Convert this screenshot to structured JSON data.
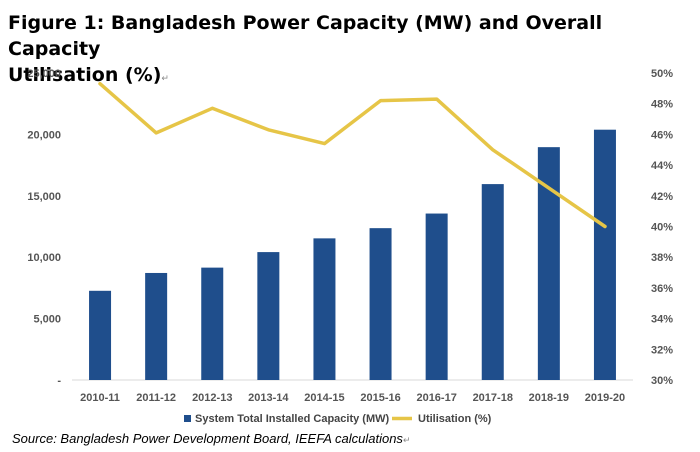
{
  "figure": {
    "title_line1": "Figure 1: Bangladesh Power Capacity (MW) and Overall Capacity",
    "title_line2": "Utilisation (%)",
    "paragraph_mark": "↵",
    "source": "Source: Bangladesh Power Development Board, IEEFA calculations"
  },
  "chart_data": {
    "type": "bar",
    "categories": [
      "2010-11",
      "2011-12",
      "2012-13",
      "2013-14",
      "2014-15",
      "2015-16",
      "2016-17",
      "2017-18",
      "2018-19",
      "2019-20"
    ],
    "series": [
      {
        "name": "System Total Installed Capacity (MW)",
        "type": "bar",
        "axis": "left",
        "color": "#1f4e8c",
        "values": [
          7264,
          8716,
          9151,
          10416,
          11534,
          12365,
          13555,
          15953,
          18961,
          20383
        ]
      },
      {
        "name": "Utilisation (%)",
        "type": "line",
        "axis": "right",
        "color": "#e6c547",
        "values": [
          49.3,
          46.1,
          47.7,
          46.3,
          45.4,
          48.2,
          48.3,
          45.0,
          42.5,
          40.0
        ]
      }
    ],
    "y_left": {
      "min": 0,
      "max": 25000,
      "ticks": [
        {
          "value": 0,
          "label": "-"
        },
        {
          "value": 5000,
          "label": "5,000"
        },
        {
          "value": 10000,
          "label": "10,000"
        },
        {
          "value": 15000,
          "label": "15,000"
        },
        {
          "value": 20000,
          "label": "20,000"
        },
        {
          "value": 25000,
          "label": "25,000"
        }
      ]
    },
    "y_right": {
      "min": 30,
      "max": 50,
      "ticks": [
        {
          "value": 30,
          "label": "30%"
        },
        {
          "value": 32,
          "label": "32%"
        },
        {
          "value": 34,
          "label": "34%"
        },
        {
          "value": 36,
          "label": "36%"
        },
        {
          "value": 38,
          "label": "38%"
        },
        {
          "value": 40,
          "label": "40%"
        },
        {
          "value": 42,
          "label": "42%"
        },
        {
          "value": 44,
          "label": "44%"
        },
        {
          "value": 46,
          "label": "46%"
        },
        {
          "value": 48,
          "label": "48%"
        },
        {
          "value": 50,
          "label": "50%"
        }
      ]
    },
    "grid": false,
    "legend_position": "bottom"
  }
}
